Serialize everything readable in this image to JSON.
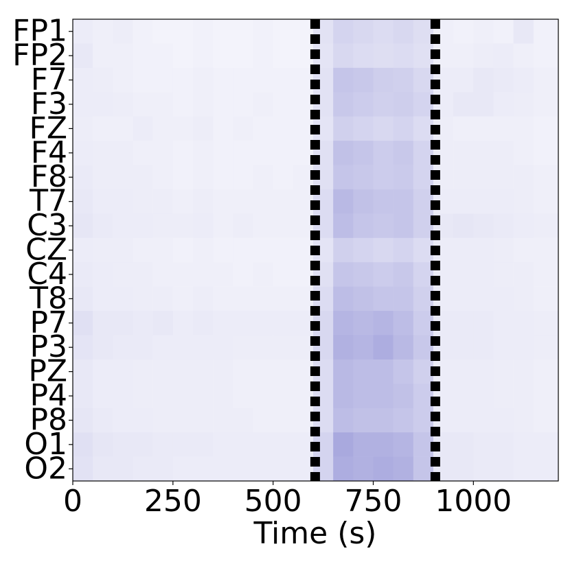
{
  "chart_data": {
    "type": "heatmap",
    "xlabel": "Time (s)",
    "categories": [
      "FP1",
      "FP2",
      "F7",
      "F3",
      "FZ",
      "F4",
      "F8",
      "T7",
      "C3",
      "CZ",
      "C4",
      "T8",
      "P7",
      "P3",
      "PZ",
      "P4",
      "P8",
      "O1",
      "O2"
    ],
    "bins": [
      0,
      50,
      100,
      150,
      200,
      250,
      300,
      350,
      400,
      450,
      500,
      550,
      600,
      650,
      700,
      750,
      800,
      850,
      900,
      950,
      1000,
      1050,
      1100,
      1150,
      1212
    ],
    "z": [
      [
        0.1,
        0.08,
        0.09,
        0.07,
        0.06,
        0.06,
        0.07,
        0.06,
        0.06,
        0.07,
        0.06,
        0.06,
        0.15,
        0.22,
        0.2,
        0.18,
        0.2,
        0.17,
        0.08,
        0.07,
        0.08,
        0.07,
        0.12,
        0.07
      ],
      [
        0.12,
        0.08,
        0.08,
        0.07,
        0.07,
        0.06,
        0.07,
        0.06,
        0.06,
        0.07,
        0.06,
        0.06,
        0.14,
        0.2,
        0.18,
        0.17,
        0.18,
        0.16,
        0.08,
        0.08,
        0.09,
        0.1,
        0.08,
        0.07
      ],
      [
        0.1,
        0.09,
        0.08,
        0.07,
        0.07,
        0.07,
        0.08,
        0.07,
        0.07,
        0.07,
        0.07,
        0.07,
        0.15,
        0.3,
        0.28,
        0.25,
        0.24,
        0.2,
        0.1,
        0.1,
        0.12,
        0.11,
        0.1,
        0.08
      ],
      [
        0.1,
        0.1,
        0.09,
        0.08,
        0.08,
        0.07,
        0.08,
        0.07,
        0.07,
        0.08,
        0.07,
        0.07,
        0.15,
        0.28,
        0.26,
        0.24,
        0.25,
        0.22,
        0.1,
        0.12,
        0.12,
        0.1,
        0.09,
        0.08
      ],
      [
        0.09,
        0.08,
        0.08,
        0.1,
        0.08,
        0.08,
        0.09,
        0.07,
        0.08,
        0.07,
        0.07,
        0.07,
        0.14,
        0.24,
        0.22,
        0.2,
        0.22,
        0.18,
        0.09,
        0.08,
        0.08,
        0.08,
        0.08,
        0.07
      ],
      [
        0.1,
        0.09,
        0.09,
        0.08,
        0.08,
        0.07,
        0.08,
        0.07,
        0.07,
        0.07,
        0.07,
        0.07,
        0.16,
        0.32,
        0.3,
        0.26,
        0.28,
        0.22,
        0.09,
        0.09,
        0.09,
        0.09,
        0.08,
        0.07
      ],
      [
        0.11,
        0.09,
        0.09,
        0.09,
        0.08,
        0.07,
        0.08,
        0.07,
        0.07,
        0.08,
        0.07,
        0.08,
        0.16,
        0.3,
        0.28,
        0.26,
        0.27,
        0.22,
        0.09,
        0.09,
        0.09,
        0.09,
        0.09,
        0.08
      ],
      [
        0.12,
        0.1,
        0.1,
        0.09,
        0.09,
        0.08,
        0.09,
        0.08,
        0.08,
        0.08,
        0.08,
        0.08,
        0.18,
        0.36,
        0.32,
        0.3,
        0.3,
        0.24,
        0.1,
        0.1,
        0.1,
        0.1,
        0.09,
        0.08
      ],
      [
        0.13,
        0.11,
        0.1,
        0.1,
        0.09,
        0.09,
        0.1,
        0.08,
        0.09,
        0.08,
        0.08,
        0.08,
        0.18,
        0.34,
        0.3,
        0.28,
        0.3,
        0.24,
        0.12,
        0.13,
        0.12,
        0.11,
        0.1,
        0.09
      ],
      [
        0.1,
        0.09,
        0.09,
        0.08,
        0.08,
        0.07,
        0.08,
        0.07,
        0.07,
        0.07,
        0.07,
        0.07,
        0.14,
        0.24,
        0.22,
        0.2,
        0.22,
        0.18,
        0.1,
        0.1,
        0.1,
        0.09,
        0.08,
        0.08
      ],
      [
        0.11,
        0.1,
        0.09,
        0.09,
        0.08,
        0.08,
        0.08,
        0.08,
        0.07,
        0.08,
        0.07,
        0.07,
        0.16,
        0.3,
        0.28,
        0.26,
        0.28,
        0.22,
        0.1,
        0.1,
        0.1,
        0.09,
        0.09,
        0.08
      ],
      [
        0.12,
        0.1,
        0.1,
        0.09,
        0.09,
        0.08,
        0.09,
        0.08,
        0.08,
        0.08,
        0.08,
        0.08,
        0.18,
        0.34,
        0.32,
        0.3,
        0.3,
        0.24,
        0.1,
        0.1,
        0.1,
        0.1,
        0.09,
        0.08
      ],
      [
        0.16,
        0.12,
        0.12,
        0.11,
        0.12,
        0.1,
        0.11,
        0.1,
        0.1,
        0.1,
        0.1,
        0.1,
        0.2,
        0.38,
        0.36,
        0.38,
        0.34,
        0.26,
        0.11,
        0.11,
        0.11,
        0.1,
        0.1,
        0.09
      ],
      [
        0.14,
        0.12,
        0.11,
        0.11,
        0.1,
        0.1,
        0.1,
        0.1,
        0.09,
        0.09,
        0.09,
        0.09,
        0.2,
        0.4,
        0.38,
        0.42,
        0.36,
        0.28,
        0.11,
        0.11,
        0.11,
        0.1,
        0.1,
        0.09
      ],
      [
        0.12,
        0.1,
        0.1,
        0.09,
        0.09,
        0.09,
        0.09,
        0.09,
        0.08,
        0.08,
        0.08,
        0.08,
        0.18,
        0.36,
        0.34,
        0.34,
        0.3,
        0.24,
        0.1,
        0.1,
        0.1,
        0.09,
        0.09,
        0.08
      ],
      [
        0.12,
        0.1,
        0.1,
        0.09,
        0.09,
        0.09,
        0.09,
        0.09,
        0.08,
        0.08,
        0.08,
        0.08,
        0.18,
        0.36,
        0.34,
        0.34,
        0.32,
        0.26,
        0.1,
        0.1,
        0.1,
        0.09,
        0.09,
        0.08
      ],
      [
        0.13,
        0.11,
        0.1,
        0.1,
        0.09,
        0.09,
        0.09,
        0.09,
        0.09,
        0.08,
        0.08,
        0.08,
        0.18,
        0.34,
        0.32,
        0.32,
        0.3,
        0.26,
        0.1,
        0.1,
        0.1,
        0.1,
        0.09,
        0.08
      ],
      [
        0.16,
        0.13,
        0.12,
        0.12,
        0.11,
        0.11,
        0.11,
        0.1,
        0.1,
        0.1,
        0.1,
        0.1,
        0.22,
        0.44,
        0.4,
        0.4,
        0.38,
        0.3,
        0.12,
        0.12,
        0.11,
        0.11,
        0.1,
        0.1
      ],
      [
        0.15,
        0.12,
        0.12,
        0.11,
        0.11,
        0.1,
        0.1,
        0.1,
        0.1,
        0.1,
        0.1,
        0.1,
        0.22,
        0.42,
        0.4,
        0.42,
        0.4,
        0.3,
        0.12,
        0.12,
        0.11,
        0.11,
        0.1,
        0.1
      ]
    ],
    "colormap": [
      "#ffffff",
      "#3c3cb4"
    ],
    "zlim": [
      0,
      1
    ],
    "xlim": [
      0,
      1212
    ],
    "xticks": [
      0,
      250,
      500,
      750,
      1000
    ],
    "vlines": [
      605,
      905
    ],
    "vline_color": "#000000"
  }
}
